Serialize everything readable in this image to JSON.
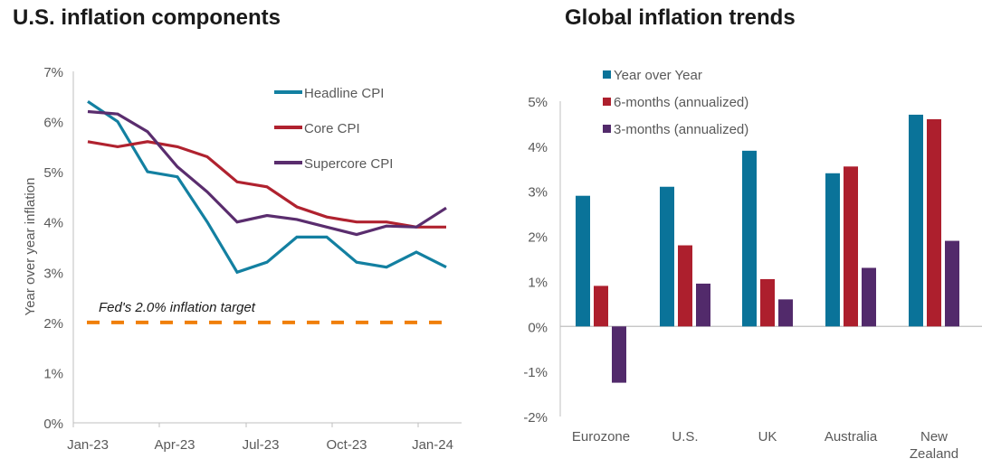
{
  "chart_data": [
    {
      "type": "line",
      "title": "U.S. inflation components",
      "xlabel": "",
      "ylabel": "Year over year inflation",
      "ylim": [
        0,
        7
      ],
      "yticks": [
        "0%",
        "1%",
        "2%",
        "3%",
        "4%",
        "5%",
        "6%",
        "7%"
      ],
      "xticks": [
        "Jan-23",
        "Apr-23",
        "Jul-23",
        "Oct-23",
        "Jan-24"
      ],
      "x": [
        "Jan-23",
        "Feb-23",
        "Mar-23",
        "Apr-23",
        "May-23",
        "Jun-23",
        "Jul-23",
        "Aug-23",
        "Sep-23",
        "Oct-23",
        "Nov-23",
        "Dec-23",
        "Jan-24"
      ],
      "series": [
        {
          "name": "Headline CPI",
          "color": "#1380A1",
          "values": [
            6.4,
            6.0,
            5.0,
            4.9,
            4.0,
            3.0,
            3.2,
            3.7,
            3.7,
            3.2,
            3.1,
            3.4,
            3.1
          ]
        },
        {
          "name": "Core CPI",
          "color": "#B0222F",
          "values": [
            5.6,
            5.5,
            5.6,
            5.5,
            5.3,
            4.8,
            4.7,
            4.3,
            4.1,
            4.0,
            4.0,
            3.9,
            3.9
          ]
        },
        {
          "name": "Supercore CPI",
          "color": "#5A2D6E",
          "values": [
            6.2,
            6.15,
            5.8,
            5.1,
            4.6,
            4.0,
            4.13,
            4.05,
            3.9,
            3.75,
            3.92,
            3.9,
            4.28
          ]
        }
      ],
      "reference_line": {
        "label": "Fed's 2.0% inflation target",
        "value": 2.0,
        "color": "#F07F09"
      },
      "legend": "top-right",
      "grid": false
    },
    {
      "type": "bar",
      "title": "Global inflation trends",
      "xlabel": "",
      "ylabel": "",
      "ylim": [
        -2,
        5
      ],
      "yticks": [
        "-2%",
        "-1%",
        "0%",
        "1%",
        "2%",
        "3%",
        "4%",
        "5%"
      ],
      "categories": [
        "Eurozone",
        "U.S.",
        "UK",
        "Australia",
        "New Zealand"
      ],
      "series": [
        {
          "name": "Year over Year",
          "color": "#0A7399",
          "values": [
            2.9,
            3.1,
            3.9,
            3.4,
            4.7
          ]
        },
        {
          "name": "6-months (annualized)",
          "color": "#AD1F2D",
          "values": [
            0.9,
            1.8,
            1.05,
            3.55,
            4.6
          ]
        },
        {
          "name": "3-months (annualized)",
          "color": "#522A6B",
          "values": [
            -1.25,
            0.95,
            0.6,
            1.3,
            1.9
          ]
        }
      ],
      "legend": "top-left",
      "grid": false
    }
  ]
}
